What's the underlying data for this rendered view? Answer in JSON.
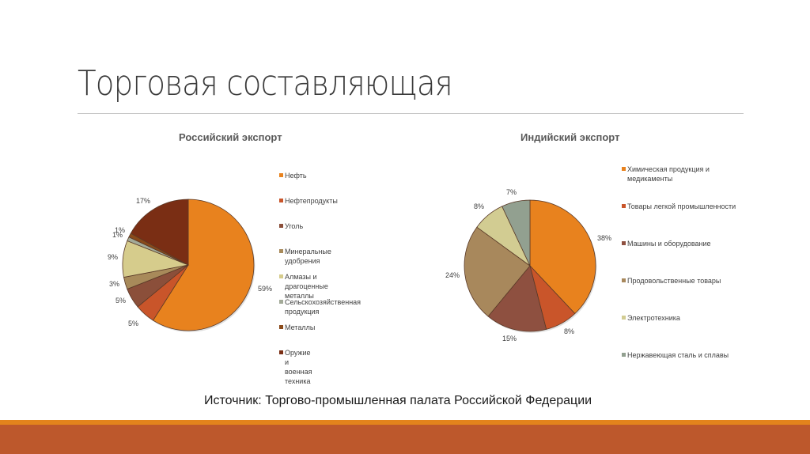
{
  "slide": {
    "title": "Торговая составляющая",
    "source": "Источник: Торгово-промышленная палата Российской Федерации",
    "colors": {
      "footer_stripe": "#e3831c",
      "footer_bar": "#bd582c",
      "divider": "#c8c8c8"
    }
  },
  "chart_data": [
    {
      "type": "pie",
      "title": "Российский экспорт",
      "categories": [
        "Нефть",
        "Нефтепродукты",
        "Уголь",
        "Минеральные удобрения",
        "Алмазы и драгоценные металлы",
        "Сельскохозяйственная продукция",
        "Металлы",
        "Оружие и военная техника"
      ],
      "values": [
        59,
        5,
        5,
        3,
        9,
        1,
        1,
        17
      ],
      "labels": [
        "59%",
        "5%",
        "5%",
        "3%",
        "9%",
        "1%",
        "1%",
        "17%"
      ],
      "colors": [
        "#e8821e",
        "#c9552a",
        "#8b4f3a",
        "#a88a5a",
        "#d6cc8c",
        "#a3aa98",
        "#8a4a1a",
        "#7a2e14"
      ],
      "legend_position": "right"
    },
    {
      "type": "pie",
      "title": "Индийский экспорт",
      "categories": [
        "Химическая продукция и медикаменты",
        "Товары легкой промышленности",
        "Машины и оборудование",
        "Продовольственные товары",
        "Электротехника",
        "Нержавеющая сталь и сплавы"
      ],
      "values": [
        38,
        8,
        15,
        24,
        8,
        7
      ],
      "labels": [
        "38%",
        "8%",
        "15%",
        "24%",
        "8%",
        "7%"
      ],
      "colors": [
        "#e8821e",
        "#c9552a",
        "#8e5040",
        "#a8885c",
        "#d2cc92",
        "#92a090"
      ],
      "legend_position": "right"
    }
  ]
}
